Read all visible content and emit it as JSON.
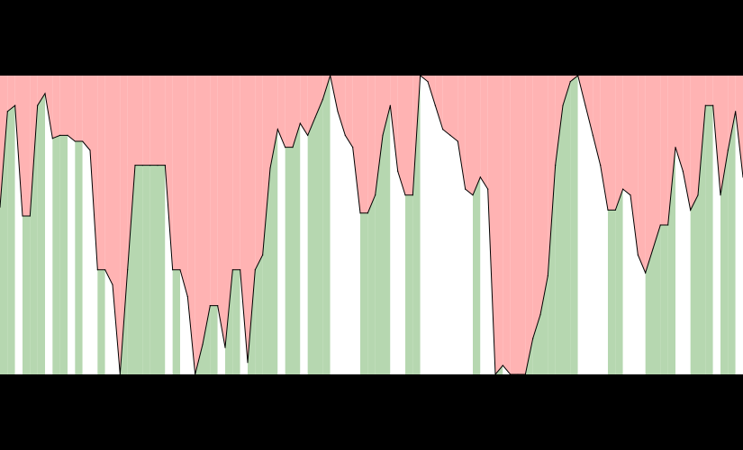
{
  "colors": {
    "page_background": "#000000",
    "plot_background": "#ffffff",
    "above_fill": "#ffb3b3",
    "below_fill": "#b6d7b0",
    "line": "#000000"
  },
  "chart_data": {
    "type": "area",
    "title": "",
    "xlabel": "",
    "ylabel": "",
    "grid": false,
    "legend": "none",
    "xlim": [
      0,
      100
    ],
    "ylim": [
      0,
      100
    ],
    "series": [
      {
        "values": [
          56,
          88,
          90,
          53,
          53,
          90,
          94,
          79,
          80,
          80,
          78,
          78,
          75,
          35,
          35,
          30,
          0,
          35,
          70,
          70,
          70,
          70,
          70,
          35,
          35,
          26,
          0,
          10,
          23,
          23,
          9,
          35,
          35,
          4,
          35,
          40,
          69,
          82,
          76,
          76,
          84,
          80,
          86,
          92,
          100,
          88,
          80,
          76,
          54,
          54,
          60,
          80,
          90,
          68,
          60,
          60,
          100,
          98,
          90,
          82,
          80,
          78,
          62,
          60,
          66,
          62,
          0,
          3,
          0,
          0,
          0,
          12,
          20,
          33,
          70,
          90,
          98,
          100,
          90,
          80,
          70,
          55,
          55,
          62,
          60,
          40,
          34,
          42,
          50,
          50,
          76,
          68,
          55,
          60,
          90,
          90,
          60,
          75,
          88,
          66
        ]
      }
    ]
  }
}
